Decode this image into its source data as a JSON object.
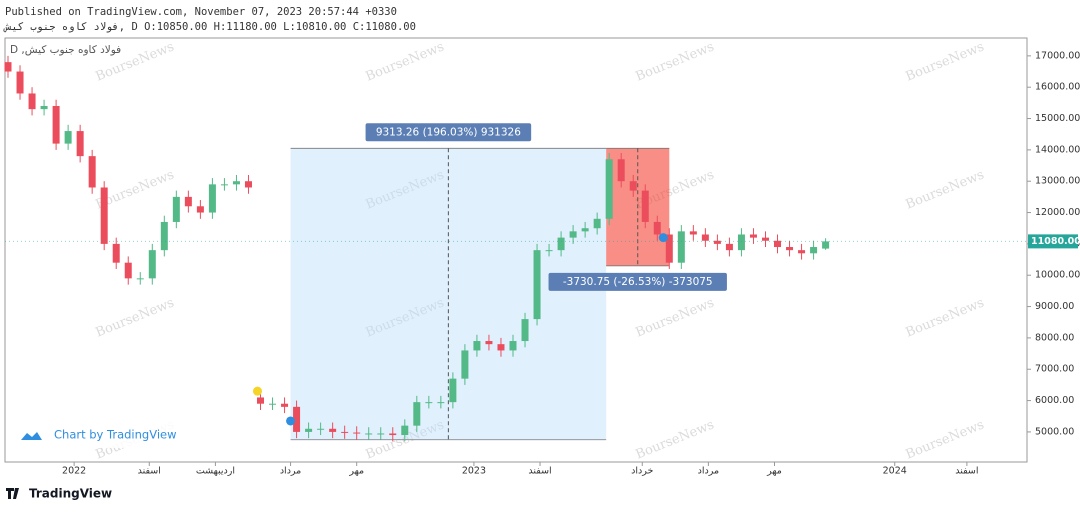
{
  "header": {
    "line1": "Published on TradingView.com, November 07, 2023 20:57:44 +0330",
    "line2": "فولاد کاوه جنوب کیش, D O:10850.00 H:11180.00 L:10810.00 C:11080.00"
  },
  "chart_data": {
    "type": "candlestick",
    "symbol_label": "D ,فولاد کاوه جنوب کیش",
    "watermark": "BourseNews",
    "credit": "Chart by TradingView",
    "footer": "TradingView",
    "up_color": "#53b987",
    "down_color": "#eb4d5c",
    "xlim": [
      0,
      340
    ],
    "ylim": [
      4040,
      17570
    ],
    "yticks": [
      {
        "value": 5000,
        "label": "5000.00"
      },
      {
        "value": 6000,
        "label": "6000.00"
      },
      {
        "value": 7000,
        "label": "7000.00"
      },
      {
        "value": 8000,
        "label": "8000.00"
      },
      {
        "value": 9000,
        "label": "9000.00"
      },
      {
        "value": 10000,
        "label": "10000.00"
      },
      {
        "value": 11000,
        "label": "11000.00"
      },
      {
        "value": 12000,
        "label": "12000.00"
      },
      {
        "value": 13000,
        "label": "13000.00"
      },
      {
        "value": 14000,
        "label": "14000.00"
      },
      {
        "value": 15000,
        "label": "15000.00"
      },
      {
        "value": 16000,
        "label": "16000.00"
      },
      {
        "value": 17000,
        "label": "17000.00"
      }
    ],
    "xticks": [
      {
        "value": 23,
        "label": "2022"
      },
      {
        "value": 48,
        "label": "اسفند"
      },
      {
        "value": 70,
        "label": "اردیبهشت"
      },
      {
        "value": 95,
        "label": "مرداد"
      },
      {
        "value": 117,
        "label": "مهر"
      },
      {
        "value": 156,
        "label": "2023"
      },
      {
        "value": 178,
        "label": "اسفند"
      },
      {
        "value": 212,
        "label": "خرداد"
      },
      {
        "value": 234,
        "label": "مرداد"
      },
      {
        "value": 256,
        "label": "مهر"
      },
      {
        "value": 296,
        "label": "2024"
      },
      {
        "value": 320,
        "label": "اسفند"
      }
    ],
    "x": [
      1,
      5,
      9,
      13,
      17,
      21,
      25,
      29,
      33,
      37,
      41,
      45,
      49,
      53,
      57,
      61,
      65,
      69,
      73,
      77,
      81,
      85,
      89,
      93,
      97,
      101,
      105,
      109,
      113,
      117,
      121,
      125,
      129,
      133,
      137,
      141,
      145,
      149,
      153,
      157,
      161,
      165,
      169,
      173,
      177,
      181,
      185,
      189,
      193,
      197,
      201,
      205,
      209,
      213,
      217,
      221,
      225,
      229,
      233,
      237,
      241,
      245,
      249,
      253,
      257,
      261,
      265,
      269,
      273
    ],
    "open": [
      16800,
      16500,
      15800,
      15300,
      15400,
      14200,
      14600,
      13800,
      12800,
      11000,
      10400,
      9900,
      9900,
      10800,
      11700,
      12500,
      12200,
      12000,
      12900,
      12900,
      13000,
      6100,
      5900,
      5900,
      5800,
      5000,
      5100,
      5100,
      5000,
      4980,
      4950,
      4950,
      4950,
      4900,
      5200,
      5950,
      5950,
      5950,
      6700,
      7600,
      7900,
      7800,
      7600,
      7900,
      8600,
      10800,
      10800,
      11200,
      11400,
      11500,
      11800,
      13700,
      13000,
      12700,
      11700,
      11300,
      10400,
      11400,
      11300,
      11100,
      11000,
      10800,
      11300,
      11200,
      11100,
      10900,
      10800,
      10700,
      10850
    ],
    "high": [
      17000,
      16700,
      16000,
      15600,
      15600,
      14800,
      14800,
      14000,
      13000,
      11200,
      10600,
      10100,
      11000,
      11900,
      12700,
      12700,
      12400,
      13100,
      13100,
      13200,
      13200,
      6300,
      6100,
      6100,
      6000,
      5300,
      5300,
      5300,
      5200,
      5180,
      5150,
      5150,
      5150,
      5400,
      6150,
      6150,
      6150,
      6900,
      7800,
      8100,
      8100,
      8000,
      8100,
      8800,
      11000,
      11000,
      11400,
      11600,
      11700,
      12000,
      13900,
      13900,
      13200,
      12900,
      11900,
      11500,
      11600,
      11600,
      11500,
      11300,
      11200,
      11500,
      11500,
      11400,
      11300,
      11100,
      11000,
      11100,
      11180
    ],
    "low": [
      16300,
      15600,
      15100,
      15100,
      14000,
      14000,
      13600,
      12600,
      10800,
      10200,
      9700,
      9700,
      9700,
      10600,
      11500,
      12000,
      11800,
      11800,
      12700,
      12700,
      12600,
      5700,
      5700,
      5600,
      4800,
      4800,
      4900,
      4800,
      4780,
      4750,
      4750,
      4750,
      4700,
      4700,
      5000,
      5750,
      5750,
      5750,
      6500,
      7400,
      7600,
      7400,
      7400,
      7700,
      8400,
      10600,
      10600,
      11000,
      11200,
      11300,
      11600,
      12800,
      12500,
      11500,
      11100,
      10200,
      10200,
      11100,
      10900,
      10800,
      10600,
      10600,
      11000,
      10900,
      10700,
      10600,
      10500,
      10500,
      10810
    ],
    "close": [
      16500,
      15800,
      15300,
      15400,
      14200,
      14600,
      13800,
      12800,
      11000,
      10400,
      9900,
      9900,
      10800,
      11700,
      12500,
      12200,
      12000,
      12900,
      12900,
      13000,
      12800,
      5900,
      5900,
      5800,
      5000,
      5100,
      5100,
      5000,
      4980,
      4950,
      4950,
      4950,
      4900,
      5200,
      5950,
      5950,
      5950,
      6700,
      7600,
      7900,
      7800,
      7600,
      7900,
      8600,
      10800,
      10800,
      11200,
      11400,
      11500,
      11800,
      13700,
      13000,
      12700,
      11700,
      11300,
      10400,
      11400,
      11300,
      11100,
      11000,
      10800,
      11300,
      11200,
      11100,
      10900,
      10800,
      10700,
      10900,
      11080
    ],
    "last_price": {
      "value": 11080,
      "label": "11080.00",
      "color": "#26a69a"
    },
    "ranges": [
      {
        "x": [
          95,
          200
        ],
        "y": [
          4750,
          14050
        ],
        "color": "#bbdefb",
        "label": "9313.26 (196.03%) 931326",
        "label_at": "top"
      },
      {
        "x": [
          200,
          221
        ],
        "y": [
          10300,
          14050
        ],
        "color": "#f44336",
        "label": "-3730.75 (-26.53%) -373075",
        "label_at": "bottom"
      }
    ],
    "markers": [
      {
        "x": 84,
        "y": 6300,
        "color": "#f5d327"
      },
      {
        "x": 95,
        "y": 5350,
        "color": "#2f8ee0"
      },
      {
        "x": 219,
        "y": 11200,
        "color": "#2f8ee0"
      }
    ]
  }
}
